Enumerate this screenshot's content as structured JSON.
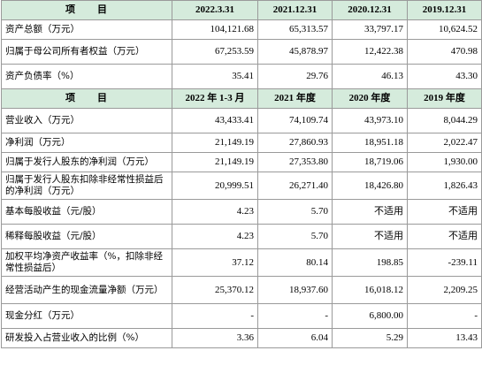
{
  "header1": [
    "项　　目",
    "2022.3.31",
    "2021.12.31",
    "2020.12.31",
    "2019.12.31"
  ],
  "section1_rows": [
    {
      "label": "资产总额（万元）",
      "values": [
        "104,121.68",
        "65,313.57",
        "33,797.17",
        "10,624.52"
      ]
    },
    {
      "label": "归属于母公司所有者权益（万元）",
      "values": [
        "67,253.59",
        "45,878.97",
        "12,422.38",
        "470.98"
      ]
    },
    {
      "label": "资产负债率（%）",
      "values": [
        "35.41",
        "29.76",
        "46.13",
        "43.30"
      ]
    }
  ],
  "header2": [
    "项　　目",
    "2022 年 1-3 月",
    "2021 年度",
    "2020 年度",
    "2019 年度"
  ],
  "section2_rows": [
    {
      "label": "营业收入（万元）",
      "values": [
        "43,433.41",
        "74,109.74",
        "43,973.10",
        "8,044.29"
      ]
    },
    {
      "label": "净利润（万元）",
      "values": [
        "21,149.19",
        "27,860.93",
        "18,951.18",
        "2,022.47"
      ]
    },
    {
      "label": "归属于发行人股东的净利润（万元）",
      "values": [
        "21,149.19",
        "27,353.80",
        "18,719.06",
        "1,930.00"
      ]
    },
    {
      "label": "归属于发行人股东扣除非经常性损益后的净利润（万元）",
      "values": [
        "20,999.51",
        "26,271.40",
        "18,426.80",
        "1,826.43"
      ]
    },
    {
      "label": "基本每股收益（元/股）",
      "values": [
        "4.23",
        "5.70",
        "不适用",
        "不适用"
      ]
    },
    {
      "label": "稀释每股收益（元/股）",
      "values": [
        "4.23",
        "5.70",
        "不适用",
        "不适用"
      ]
    },
    {
      "label": "加权平均净资产收益率（%，扣除非经常性损益后）",
      "values": [
        "37.12",
        "80.14",
        "198.85",
        "-239.11"
      ]
    },
    {
      "label": "经营活动产生的现金流量净额（万元）",
      "values": [
        "25,370.12",
        "18,937.60",
        "16,018.12",
        "2,209.25"
      ]
    },
    {
      "label": "现金分红（万元）",
      "values": [
        "-",
        "-",
        "6,800.00",
        "-"
      ]
    },
    {
      "label": "研发投入占营业收入的比例（%）",
      "values": [
        "3.36",
        "6.04",
        "5.29",
        "13.43"
      ]
    }
  ]
}
